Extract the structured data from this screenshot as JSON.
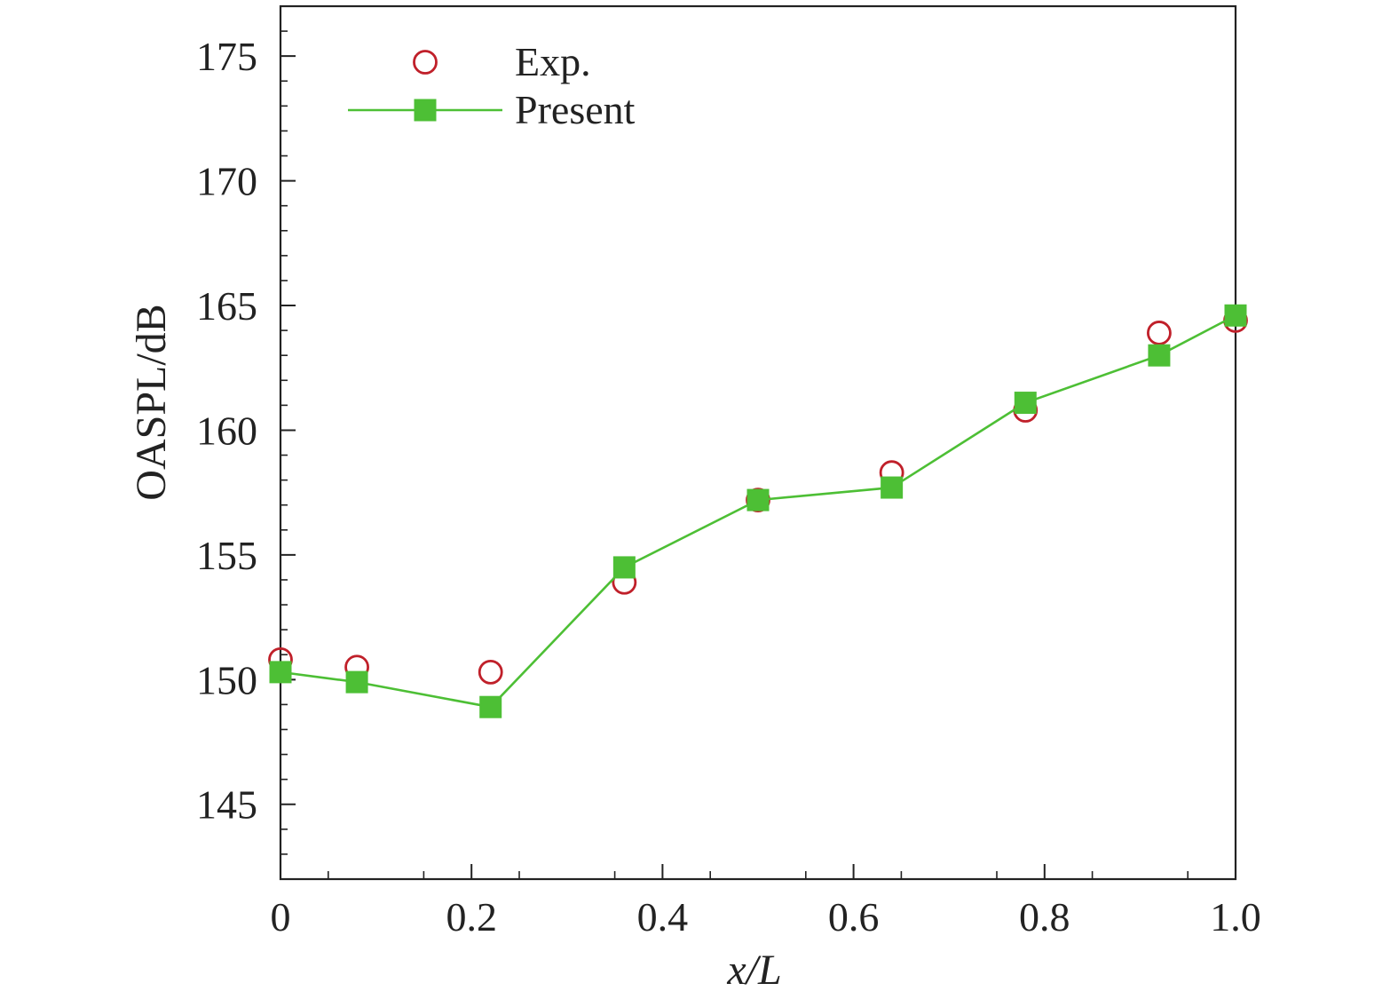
{
  "chart_data": {
    "type": "line",
    "xlabel": "x/L",
    "ylabel": "OASPL/dB",
    "xlim": [
      0,
      1.0
    ],
    "ylim": [
      142,
      177
    ],
    "x_ticks": [
      0,
      0.2,
      0.4,
      0.6,
      0.8,
      1.0
    ],
    "x_tick_labels": [
      "0",
      "0.2",
      "0.4",
      "0.6",
      "0.8",
      "1.0"
    ],
    "y_ticks": [
      145,
      150,
      155,
      160,
      165,
      170,
      175
    ],
    "y_tick_labels": [
      "145",
      "150",
      "155",
      "160",
      "165",
      "170",
      "175"
    ],
    "legend_position": "top-left",
    "grid": false,
    "series": [
      {
        "name": "Exp.",
        "style": "markers",
        "marker": "open-circle",
        "color": "#c0202a",
        "x": [
          0,
          0.08,
          0.22,
          0.36,
          0.5,
          0.64,
          0.78,
          0.92,
          1.0
        ],
        "values": [
          150.8,
          150.5,
          150.3,
          153.9,
          157.2,
          158.3,
          160.8,
          163.9,
          164.4
        ]
      },
      {
        "name": "Present",
        "style": "line+markers",
        "marker": "filled-square",
        "color": "#4dbf35",
        "x": [
          0,
          0.08,
          0.22,
          0.36,
          0.5,
          0.64,
          0.78,
          0.92,
          1.0
        ],
        "values": [
          150.3,
          149.9,
          148.9,
          154.5,
          157.2,
          157.7,
          161.1,
          163.0,
          164.6
        ]
      }
    ]
  }
}
